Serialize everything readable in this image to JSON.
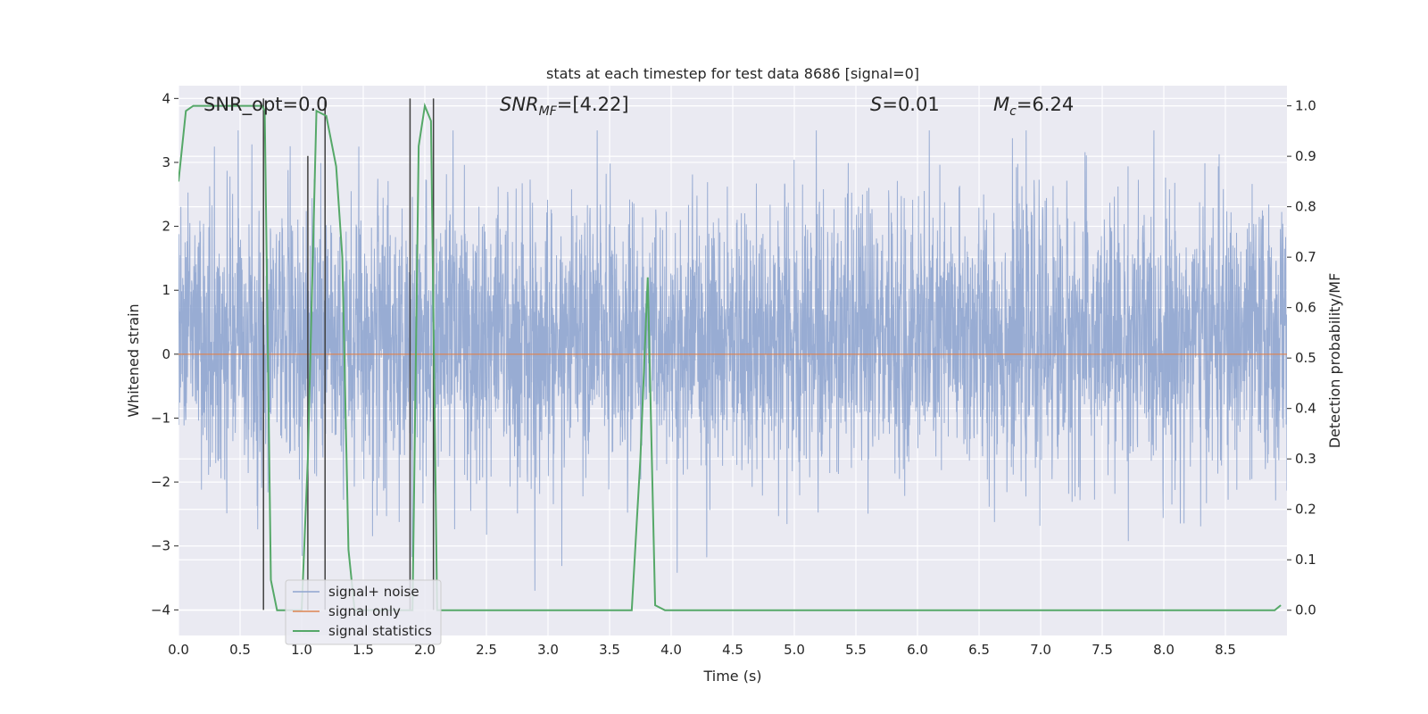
{
  "chart_data": {
    "type": "line",
    "title": "stats at each timestep for test data 8686 [signal=0]",
    "xlabel": "Time (s)",
    "ylabel": "Whitened strain",
    "ylabel_right": "Detection probability/MF",
    "xlim": [
      0.0,
      9.0
    ],
    "ylim": [
      -4.4,
      4.2
    ],
    "ylim_right": [
      -0.05,
      1.04
    ],
    "x_ticks": [
      "0.0",
      "0.5",
      "1.0",
      "1.5",
      "2.0",
      "2.5",
      "3.0",
      "3.5",
      "4.0",
      "4.5",
      "5.0",
      "5.5",
      "6.0",
      "6.5",
      "7.0",
      "7.5",
      "8.0",
      "8.5"
    ],
    "y_ticks": [
      "4",
      "3",
      "2",
      "1",
      "0",
      "−1",
      "−2",
      "−3",
      "−4"
    ],
    "y_ticks_right": [
      "1.0",
      "0.9",
      "0.8",
      "0.7",
      "0.6",
      "0.5",
      "0.4",
      "0.3",
      "0.2",
      "0.1",
      "0.0"
    ],
    "grid": true,
    "legend_position": "lower-left",
    "annotations": {
      "snr_opt": "SNR_opt=0.0",
      "snr_mf_sym": "SNR",
      "snr_mf_sub": "MF",
      "snr_mf_val": "=[4.22]",
      "s_sym": "S",
      "s_val": "=0.01",
      "mc_sym": "M",
      "mc_sub": "c",
      "mc_val": "=6.24"
    },
    "series": [
      {
        "name": "signal+ noise",
        "color": "#8fa5cf",
        "axis": "left",
        "description": "whitened noise, amplitude roughly within -2.5 to 3.5",
        "approx_envelope": [
          -2.5,
          3.5
        ]
      },
      {
        "name": "signal only",
        "color": "#dd8452",
        "axis": "left",
        "x": [
          0.0,
          9.0
        ],
        "values": [
          0.0,
          0.0
        ]
      },
      {
        "name": "signal statistics",
        "color": "#55a868",
        "axis": "right",
        "x": [
          0.0,
          0.06,
          0.12,
          0.5,
          0.68,
          0.7,
          0.75,
          0.8,
          0.85,
          0.95,
          1.0,
          1.05,
          1.12,
          1.2,
          1.28,
          1.33,
          1.38,
          1.43,
          1.5,
          1.85,
          1.9,
          1.95,
          2.0,
          2.05,
          2.1,
          2.15,
          2.2,
          3.68,
          3.75,
          3.81,
          3.87,
          3.95,
          8.9,
          8.95
        ],
        "values": [
          0.85,
          0.99,
          1.0,
          1.0,
          1.0,
          0.99,
          0.06,
          0.0,
          0.0,
          0.0,
          0.0,
          0.3,
          0.99,
          0.98,
          0.88,
          0.7,
          0.12,
          0.0,
          0.0,
          0.0,
          0.0,
          0.92,
          1.0,
          0.97,
          0.0,
          0.0,
          0.0,
          0.0,
          0.3,
          0.66,
          0.01,
          0.0,
          0.0,
          0.01
        ]
      }
    ],
    "vertical_lines": {
      "color": "#404040",
      "axis": "left",
      "x": [
        0.69,
        1.05,
        1.19,
        1.88,
        2.07
      ],
      "y_bottom": -4.0,
      "y_top": [
        4.0,
        3.1,
        4.0,
        4.0,
        4.0
      ]
    }
  }
}
